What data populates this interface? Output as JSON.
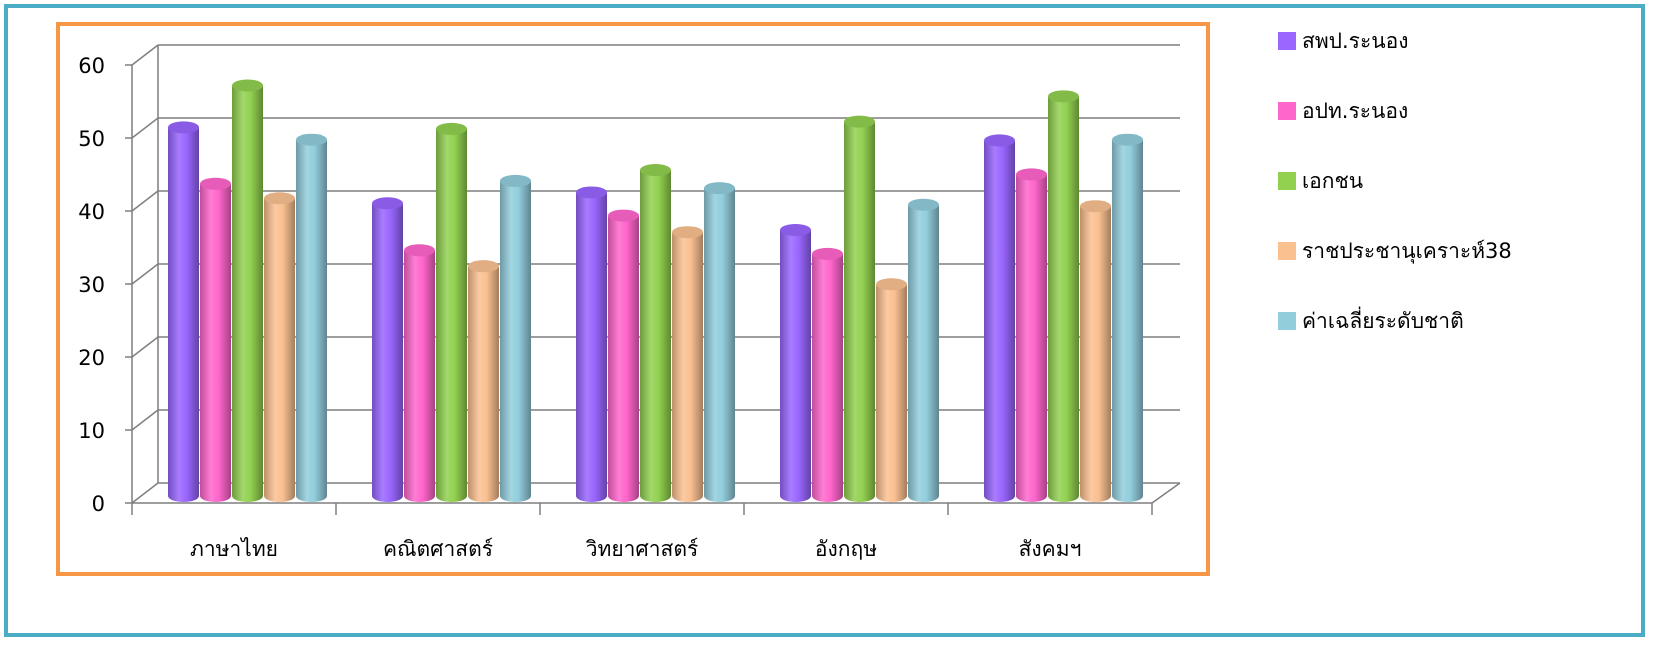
{
  "chart_data": {
    "type": "bar",
    "style": "3d-cylinder",
    "title": "",
    "xlabel": "",
    "ylabel": "",
    "ylim": [
      0,
      60
    ],
    "yticks": [
      0,
      10,
      20,
      30,
      40,
      50,
      60
    ],
    "grid": true,
    "legend_position": "right",
    "categories": [
      "ภาษาไทย",
      "คณิตศาสตร์",
      "วิทยาศาสตร์",
      "อังกฤษ",
      "สังคมฯ"
    ],
    "series": [
      {
        "name": "สพป.ระนอง",
        "color": "#9966ff",
        "values": [
          51,
          40.5,
          42,
          36.8,
          49.2
        ]
      },
      {
        "name": "อปท.ระนอง",
        "color": "#ff66cc",
        "values": [
          43.2,
          34,
          38.8,
          33.5,
          44.5
        ]
      },
      {
        "name": "เอกชน",
        "color": "#92d050",
        "values": [
          56.8,
          50.8,
          45.1,
          51.8,
          55.3
        ]
      },
      {
        "name": "ราชประชานุเคราะห์38",
        "color": "#fac090",
        "values": [
          41.2,
          31.8,
          36.5,
          29.3,
          40.1
        ]
      },
      {
        "name": "ค่าเฉลี่ยระดับชาติ",
        "color": "#92cddc",
        "values": [
          49.3,
          43.6,
          42.6,
          40.3,
          49.3
        ]
      }
    ]
  },
  "colors": {
    "outer_border": "#4bacc6",
    "plot_border": "#f79646",
    "grid": "#7f7f7f"
  }
}
